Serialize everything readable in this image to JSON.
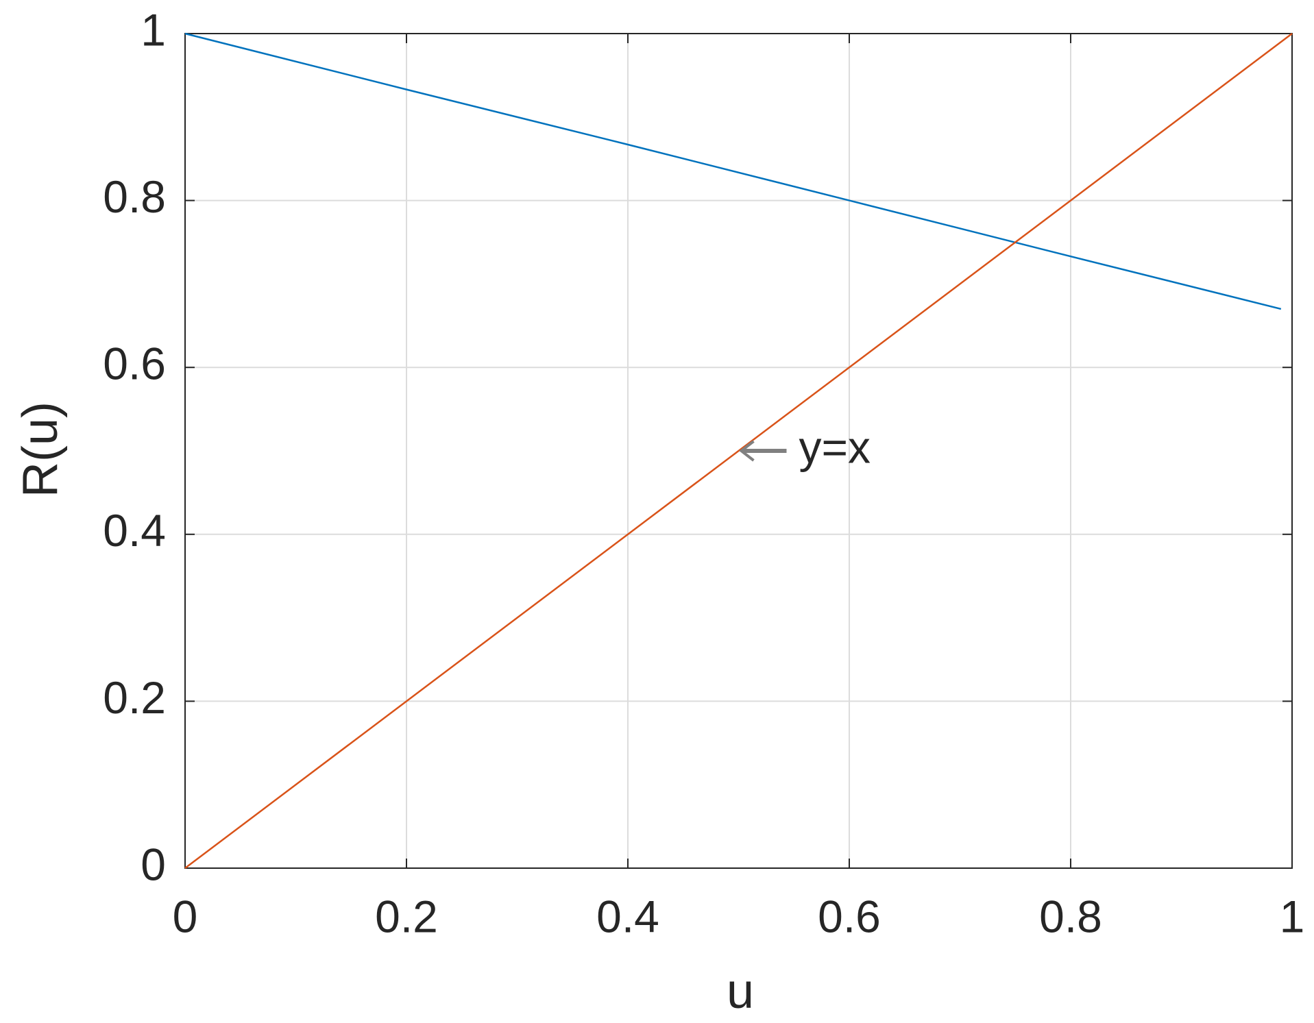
{
  "chart_data": {
    "type": "line",
    "xlabel": "u",
    "ylabel": "R(u)",
    "series": [
      {
        "name": "R(u)",
        "color": "#0072BD",
        "x": [
          0,
          0.2,
          0.4,
          0.6,
          0.8,
          0.99
        ],
        "values": [
          1,
          0.933,
          0.867,
          0.8,
          0.733,
          0.67
        ]
      },
      {
        "name": "y=x",
        "color": "#D95319",
        "x": [
          0,
          1
        ],
        "values": [
          0,
          1
        ]
      }
    ],
    "annotations": [
      {
        "text": "y=x",
        "x": 0.5,
        "y": 0.5
      }
    ],
    "xlim": [
      0,
      1
    ],
    "xticks": [
      0,
      0.2,
      0.4,
      0.6,
      0.8,
      1
    ],
    "ylim": [
      0,
      1
    ],
    "yticks": [
      0,
      0.2,
      0.4,
      0.6,
      0.8,
      1
    ],
    "grid": true,
    "legend": false
  }
}
